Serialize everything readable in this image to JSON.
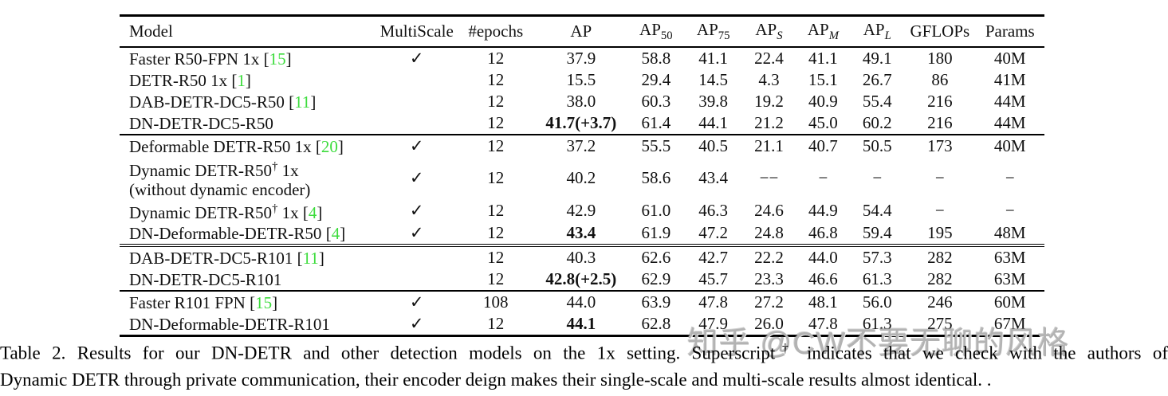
{
  "colors": {
    "citation_green": "#3ddc3d",
    "watermark_gray": "#b3b3b3"
  },
  "table": {
    "checkmark": "✓",
    "columns": [
      {
        "label": "Model"
      },
      {
        "label": "MultiScale"
      },
      {
        "label": "#epochs"
      },
      {
        "label": "AP"
      },
      {
        "base": "AP",
        "sub": "50",
        "sub_italic": false
      },
      {
        "base": "AP",
        "sub": "75",
        "sub_italic": false
      },
      {
        "base": "AP",
        "sub": "S",
        "sub_italic": true
      },
      {
        "base": "AP",
        "sub": "M",
        "sub_italic": true
      },
      {
        "base": "AP",
        "sub": "L",
        "sub_italic": true
      },
      {
        "label": "GFLOPs"
      },
      {
        "label": "Params"
      }
    ],
    "groups": [
      {
        "separator_before": "none",
        "rows": [
          {
            "model": [
              {
                "t": "text",
                "v": "Faster R50-FPN 1x "
              },
              {
                "t": "text",
                "v": "["
              },
              {
                "t": "cite",
                "v": "15"
              },
              {
                "t": "text",
                "v": "]"
              }
            ],
            "multiscale": true,
            "epochs": "12",
            "ap": {
              "text": "37.9",
              "bold": false
            },
            "ap50": "58.8",
            "ap75": "41.1",
            "aps": "22.4",
            "apm": "41.1",
            "apl": "49.1",
            "gflops": "180",
            "params": "40M"
          },
          {
            "model": [
              {
                "t": "text",
                "v": "DETR-R50 1x "
              },
              {
                "t": "text",
                "v": "["
              },
              {
                "t": "cite",
                "v": "1"
              },
              {
                "t": "text",
                "v": "]"
              }
            ],
            "multiscale": false,
            "epochs": "12",
            "ap": {
              "text": "15.5",
              "bold": false
            },
            "ap50": "29.4",
            "ap75": "14.5",
            "aps": "4.3",
            "apm": "15.1",
            "apl": "26.7",
            "gflops": "86",
            "params": "41M"
          },
          {
            "model": [
              {
                "t": "text",
                "v": "DAB-DETR-DC5-R50 "
              },
              {
                "t": "text",
                "v": "["
              },
              {
                "t": "cite",
                "v": "11"
              },
              {
                "t": "text",
                "v": "]"
              }
            ],
            "multiscale": false,
            "epochs": "12",
            "ap": {
              "text": "38.0",
              "bold": false
            },
            "ap50": "60.3",
            "ap75": "39.8",
            "aps": "19.2",
            "apm": "40.9",
            "apl": "55.4",
            "gflops": "216",
            "params": "44M"
          },
          {
            "model": [
              {
                "t": "text",
                "v": "DN-DETR-DC5-R50"
              }
            ],
            "multiscale": false,
            "epochs": "12",
            "ap": {
              "text": "41.7(+3.7)",
              "bold": true
            },
            "ap50": "61.4",
            "ap75": "44.1",
            "aps": "21.2",
            "apm": "45.0",
            "apl": "60.2",
            "gflops": "216",
            "params": "44M"
          }
        ]
      },
      {
        "separator_before": "single",
        "rows": [
          {
            "model": [
              {
                "t": "text",
                "v": "Deformable DETR-R50 1x "
              },
              {
                "t": "text",
                "v": "["
              },
              {
                "t": "cite",
                "v": "20"
              },
              {
                "t": "text",
                "v": "]"
              }
            ],
            "multiscale": true,
            "epochs": "12",
            "ap": {
              "text": "37.2",
              "bold": false
            },
            "ap50": "55.5",
            "ap75": "40.5",
            "aps": "21.1",
            "apm": "40.7",
            "apl": "50.5",
            "gflops": "173",
            "params": "40M"
          },
          {
            "model": [
              {
                "t": "text",
                "v": " Dynamic DETR-R50"
              },
              {
                "t": "sup",
                "v": "†"
              },
              {
                "t": "text",
                "v": " 1x"
              },
              {
                "t": "br"
              },
              {
                "t": "text",
                "v": "(without dynamic encoder)"
              }
            ],
            "multiscale": true,
            "epochs": "12",
            "ap": {
              "text": "40.2",
              "bold": false
            },
            "ap50": "58.6",
            "ap75": "43.4",
            "aps": "−−",
            "apm": "−",
            "apl": "−",
            "gflops": "−",
            "params": "−"
          },
          {
            "model": [
              {
                "t": "text",
                "v": "Dynamic DETR-R50"
              },
              {
                "t": "sup",
                "v": "†"
              },
              {
                "t": "text",
                "v": " 1x "
              },
              {
                "t": "text",
                "v": "["
              },
              {
                "t": "cite",
                "v": "4"
              },
              {
                "t": "text",
                "v": "]"
              }
            ],
            "multiscale": true,
            "epochs": "12",
            "ap": {
              "text": "42.9",
              "bold": false
            },
            "ap50": "61.0",
            "ap75": "46.3",
            "aps": "24.6",
            "apm": "44.9",
            "apl": "54.4",
            "gflops": "−",
            "params": "−"
          },
          {
            "model": [
              {
                "t": "text",
                "v": "DN-Deformable-DETR-R50 "
              },
              {
                "t": "text",
                "v": "["
              },
              {
                "t": "cite",
                "v": "4"
              },
              {
                "t": "text",
                "v": "]"
              }
            ],
            "multiscale": true,
            "epochs": "12",
            "ap": {
              "text": "43.4",
              "bold": true
            },
            "ap50": "61.9",
            "ap75": "47.2",
            "aps": "24.8",
            "apm": "46.8",
            "apl": "59.4",
            "gflops": "195",
            "params": "48M"
          }
        ]
      },
      {
        "separator_before": "double",
        "rows": [
          {
            "model": [
              {
                "t": "text",
                "v": "DAB-DETR-DC5-R101 "
              },
              {
                "t": "text",
                "v": "["
              },
              {
                "t": "cite",
                "v": "11"
              },
              {
                "t": "text",
                "v": "]"
              }
            ],
            "multiscale": false,
            "epochs": "12",
            "ap": {
              "text": "40.3",
              "bold": false
            },
            "ap50": "62.6",
            "ap75": "42.7",
            "aps": "22.2",
            "apm": "44.0",
            "apl": "57.3",
            "gflops": "282",
            "params": "63M"
          },
          {
            "model": [
              {
                "t": "text",
                "v": "DN-DETR-DC5-R101"
              }
            ],
            "multiscale": false,
            "epochs": "12",
            "ap": {
              "text": "42.8(+2.5)",
              "bold": true
            },
            "ap50": "62.9",
            "ap75": "45.7",
            "aps": "23.3",
            "apm": "46.6",
            "apl": "61.3",
            "gflops": "282",
            "params": "63M"
          }
        ]
      },
      {
        "separator_before": "single",
        "rows": [
          {
            "model": [
              {
                "t": "text",
                "v": "Faster R101 FPN "
              },
              {
                "t": "text",
                "v": "["
              },
              {
                "t": "cite",
                "v": "15"
              },
              {
                "t": "text",
                "v": "]"
              }
            ],
            "multiscale": true,
            "epochs": "108",
            "ap": {
              "text": "44.0",
              "bold": false
            },
            "ap50": "63.9",
            "ap75": "47.8",
            "aps": "27.2",
            "apm": "48.1",
            "apl": "56.0",
            "gflops": "246",
            "params": "60M"
          },
          {
            "model": [
              {
                "t": "text",
                "v": "DN-Deformable-DETR-R101"
              }
            ],
            "multiscale": true,
            "epochs": "12",
            "ap": {
              "text": "44.1",
              "bold": true
            },
            "ap50": "62.8",
            "ap75": "47.9",
            "aps": "26.0",
            "apm": "47.8",
            "apl": "61.3",
            "gflops": "275",
            "params": "67M"
          }
        ]
      }
    ]
  },
  "caption": {
    "line1_pre": "Table 2. Results for our DN-DETR and other detection models on the 1x setting. Superscript",
    "dagger": "†",
    "line1_post": " indicates that we check with the authors of",
    "line2": "Dynamic DETR through private communication, their encoder deign makes their single-scale and multi-scale results almost identical. ."
  },
  "watermark": {
    "text": "知乎 @CW不要无聊的风格"
  }
}
